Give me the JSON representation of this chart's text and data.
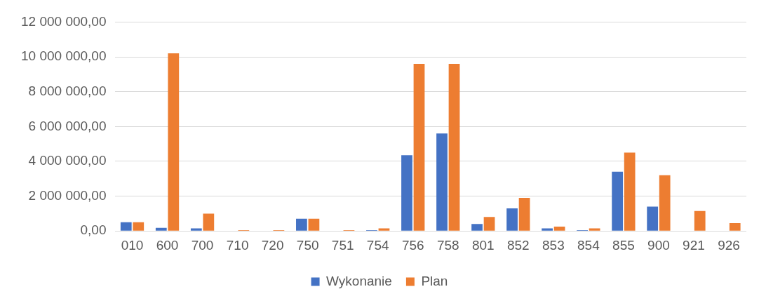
{
  "chart_data": {
    "type": "bar",
    "categories": [
      "010",
      "600",
      "700",
      "710",
      "720",
      "750",
      "751",
      "754",
      "756",
      "758",
      "801",
      "852",
      "853",
      "854",
      "855",
      "900",
      "921",
      "926"
    ],
    "series": [
      {
        "name": "Wykonanie",
        "color": "#4472c4",
        "values": [
          500000,
          180000,
          150000,
          0,
          0,
          700000,
          0,
          50000,
          4350000,
          5600000,
          400000,
          1300000,
          150000,
          50000,
          3400000,
          1400000,
          20000,
          0
        ]
      },
      {
        "name": "Plan",
        "color": "#ed7d31",
        "values": [
          500000,
          10200000,
          1000000,
          50000,
          50000,
          700000,
          50000,
          150000,
          9600000,
          9600000,
          800000,
          1900000,
          250000,
          150000,
          4500000,
          3200000,
          1150000,
          450000
        ]
      }
    ],
    "ylim": [
      0,
      12000000
    ],
    "yticks": [
      {
        "value": 0,
        "label": "0,00"
      },
      {
        "value": 2000000,
        "label": "2 000 000,00"
      },
      {
        "value": 4000000,
        "label": "4 000 000,00"
      },
      {
        "value": 6000000,
        "label": "6 000 000,00"
      },
      {
        "value": 8000000,
        "label": "8 000 000,00"
      },
      {
        "value": 10000000,
        "label": "10 000 000,00"
      },
      {
        "value": 12000000,
        "label": "12 000 000,00"
      }
    ],
    "grid": "y",
    "legend": "bottom"
  }
}
